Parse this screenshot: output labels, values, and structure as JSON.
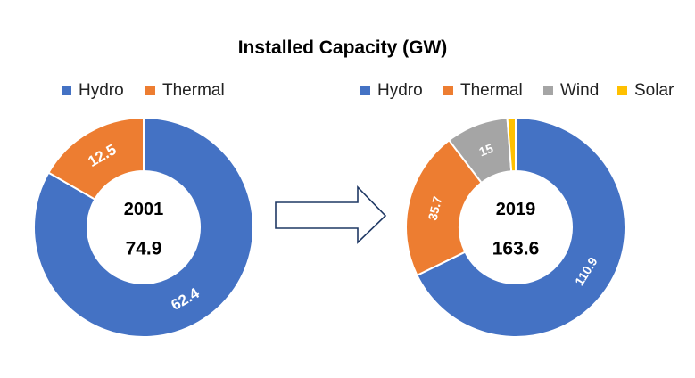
{
  "title": "Installed Capacity (GW)",
  "colors": {
    "Hydro": "#4472C4",
    "Thermal": "#ED7D31",
    "Wind": "#A5A5A5",
    "Solar": "#FFC000"
  },
  "chart_data": [
    {
      "type": "donut",
      "center_label": "2001",
      "total_label": "74.9",
      "legend": [
        "Hydro",
        "Thermal"
      ],
      "slices": [
        {
          "name": "Hydro",
          "value": 62.4,
          "label": "62.4"
        },
        {
          "name": "Thermal",
          "value": 12.5,
          "label": "12.5"
        }
      ]
    },
    {
      "type": "donut",
      "center_label": "2019",
      "total_label": "163.6",
      "legend": [
        "Hydro",
        "Thermal",
        "Wind",
        "Solar"
      ],
      "slices": [
        {
          "name": "Hydro",
          "value": 110.9,
          "label": "110.9"
        },
        {
          "name": "Thermal",
          "value": 35.7,
          "label": "35.7"
        },
        {
          "name": "Wind",
          "value": 15,
          "label": "15"
        },
        {
          "name": "Solar",
          "value": 2.0,
          "label": ""
        }
      ]
    }
  ]
}
